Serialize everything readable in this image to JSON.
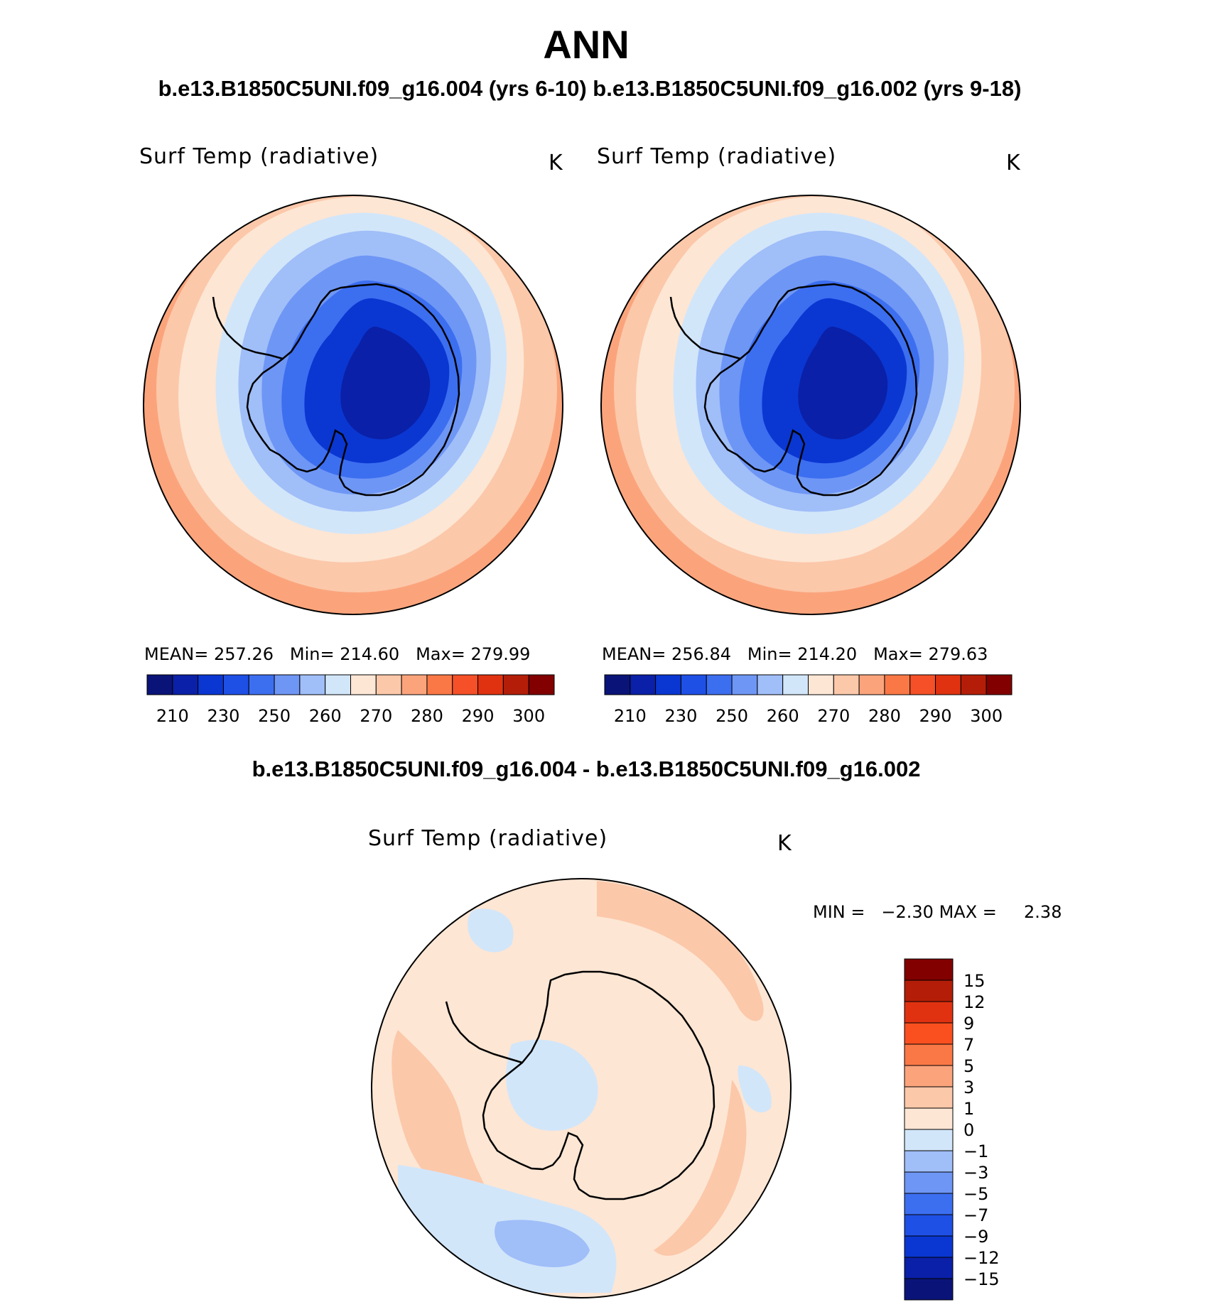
{
  "figure": {
    "title": "ANN",
    "case_header": "b.e13.B1850C5UNI.f09_g16.004 (yrs 6-10) b.e13.B1850C5UNI.f09_g16.002 (yrs 9-18)",
    "diff_header": "b.e13.B1850C5UNI.f09_g16.004 - b.e13.B1850C5UNI.f09_g16.002"
  },
  "panels": [
    {
      "id": "case-004",
      "variable": "Surf Temp (radiative)",
      "units": "K",
      "stats": {
        "mean_label": "MEAN=",
        "mean": "257.26",
        "min_label": "Min=",
        "min": "214.60",
        "max_label": "Max=",
        "max": "279.99"
      }
    },
    {
      "id": "case-002",
      "variable": "Surf Temp (radiative)",
      "units": "K",
      "stats": {
        "mean_label": "MEAN=",
        "mean": "256.84",
        "min_label": "Min=",
        "min": "214.20",
        "max_label": "Max=",
        "max": "279.63"
      }
    },
    {
      "id": "difference",
      "variable": "Surf Temp (radiative)",
      "units": "K",
      "stats": {
        "min_label": "MIN =",
        "min": "−2.30",
        "max_label": "MAX =",
        "max": "2.38"
      }
    }
  ],
  "colorbar_abs": {
    "colors": [
      "#0a1478",
      "#0a20a8",
      "#0a37d2",
      "#1e50e6",
      "#3c6ef0",
      "#6e96f5",
      "#a0bef8",
      "#d2e6fa",
      "#fde6d4",
      "#fcc8aa",
      "#fba47c",
      "#fa7846",
      "#f55028",
      "#e03210",
      "#b41e08",
      "#820000"
    ],
    "tick_labels": [
      "210",
      "230",
      "250",
      "260",
      "270",
      "280",
      "290",
      "300"
    ]
  },
  "colorbar_diff": {
    "colors": [
      "#820000",
      "#b41e08",
      "#e03210",
      "#fa5020",
      "#fa7846",
      "#fba47c",
      "#fcc8aa",
      "#fde6d4",
      "#d2e6fa",
      "#a0bef8",
      "#6e96f5",
      "#3c6ef0",
      "#1e50e6",
      "#0a37d2",
      "#0a20a8",
      "#0a1478"
    ],
    "tick_labels": [
      "15",
      "12",
      "9",
      "7",
      "5",
      "3",
      "1",
      "0",
      "−1",
      "−3",
      "−5",
      "−7",
      "−9",
      "−12",
      "−15"
    ]
  }
}
